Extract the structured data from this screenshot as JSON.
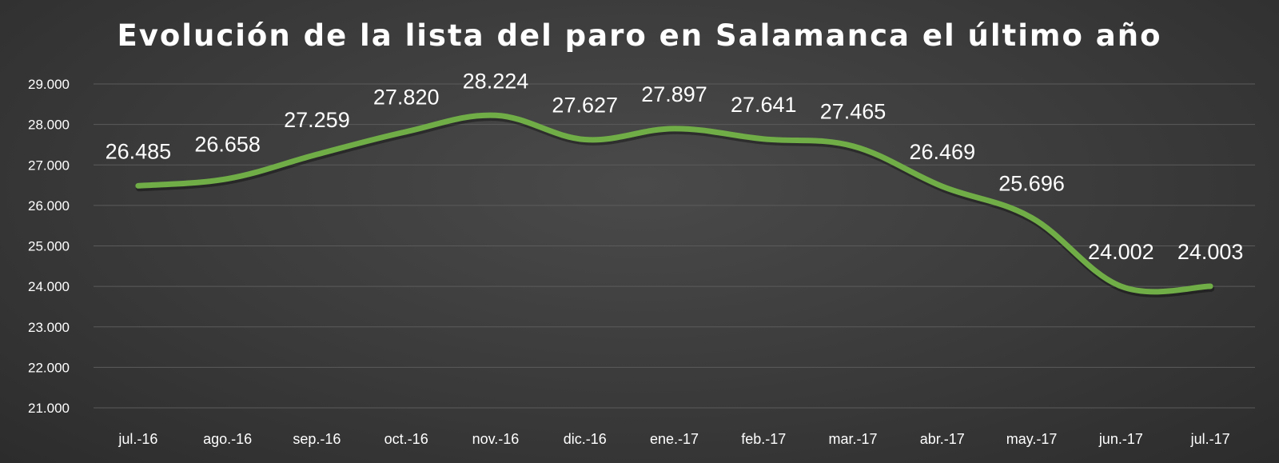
{
  "chart_data": {
    "type": "line",
    "title": "Evolución de la lista del paro en Salamanca el último año",
    "categories": [
      "jul.-16",
      "ago.-16",
      "sep.-16",
      "oct.-16",
      "nov.-16",
      "dic.-16",
      "ene.-17",
      "feb.-17",
      "mar.-17",
      "abr.-17",
      "may.-17",
      "jun.-17",
      "jul.-17"
    ],
    "values": [
      26485,
      26658,
      27259,
      27820,
      28224,
      27627,
      27897,
      27641,
      27465,
      26469,
      25696,
      24002,
      24003
    ],
    "value_labels": [
      "26.485",
      "26.658",
      "27.259",
      "27.820",
      "28.224",
      "27.627",
      "27.897",
      "27.641",
      "27.465",
      "26.469",
      "25.696",
      "24.002",
      "24.003"
    ],
    "ylim": [
      21000,
      29000
    ],
    "yticks": [
      21000,
      22000,
      23000,
      24000,
      25000,
      26000,
      27000,
      28000,
      29000
    ],
    "ytick_labels": [
      "21.000",
      "22.000",
      "23.000",
      "24.000",
      "25.000",
      "26.000",
      "27.000",
      "28.000",
      "29.000"
    ],
    "xlabel": "",
    "ylabel": "",
    "grid": true,
    "line_color": "#70ad47"
  }
}
